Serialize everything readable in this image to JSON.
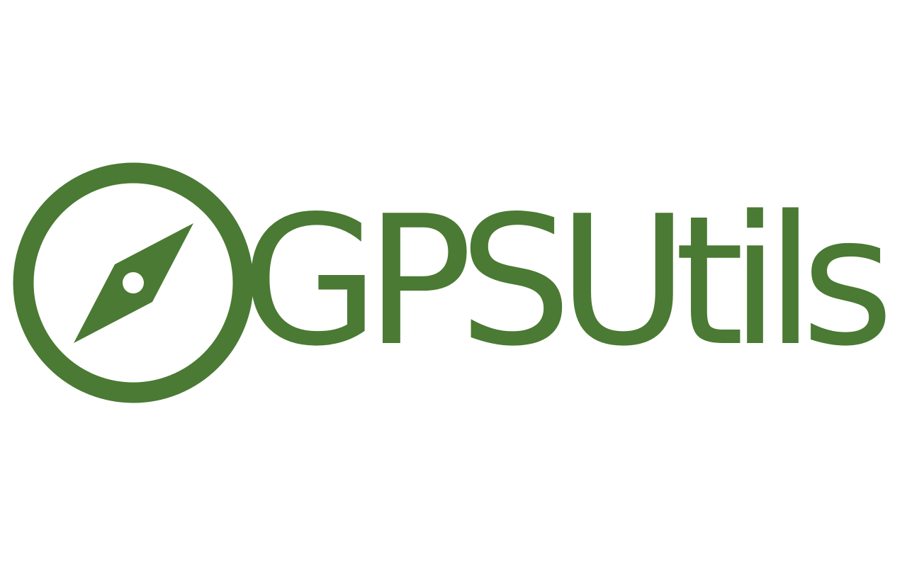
{
  "logo": {
    "wordmark": "GPSUtils",
    "icon": "compass-icon",
    "brand_color": "#4a7a33",
    "background_color": "#ffffff"
  }
}
